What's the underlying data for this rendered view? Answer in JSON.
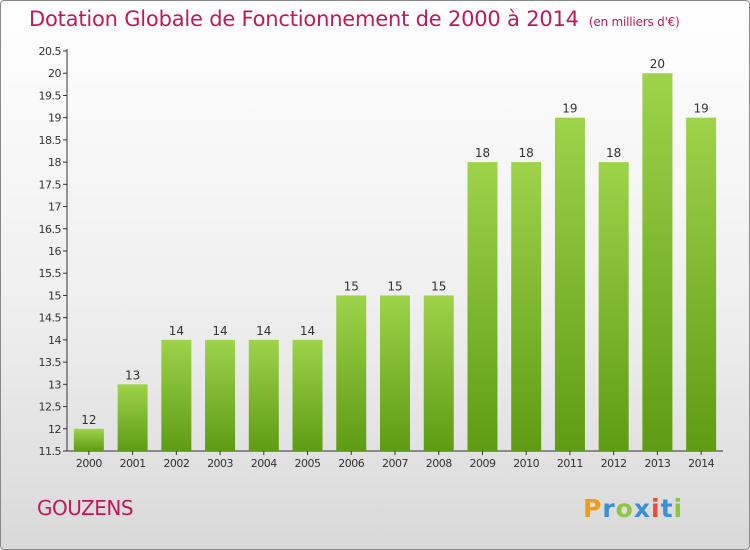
{
  "title": "Dotation Globale de Fonctionnement de 2000 à 2014",
  "unit_note": "(en milliers d'€)",
  "commune": "GOUZENS",
  "logo_text": "Proxiti",
  "colors": {
    "title": "#c2185b",
    "bar_top": "#9ed34a",
    "bar_bottom": "#5e9c14",
    "axis": "#333333",
    "text": "#333333"
  },
  "chart_data": {
    "type": "bar",
    "title": "Dotation Globale de Fonctionnement de 2000 à 2014",
    "ylabel": "",
    "xlabel": "",
    "ylim": [
      11.5,
      20.5
    ],
    "ytick_step": 0.5,
    "grid": false,
    "categories": [
      "2000",
      "2001",
      "2002",
      "2003",
      "2004",
      "2005",
      "2006",
      "2007",
      "2008",
      "2009",
      "2010",
      "2011",
      "2012",
      "2013",
      "2014"
    ],
    "values": [
      12,
      13,
      14,
      14,
      14,
      14,
      15,
      15,
      15,
      18,
      18,
      19,
      18,
      20,
      19
    ]
  }
}
